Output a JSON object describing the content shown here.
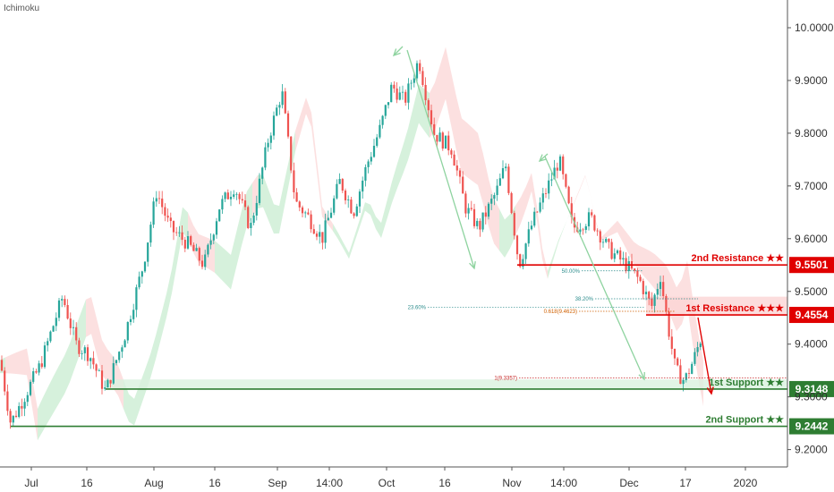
{
  "indicator": "Ichimoku",
  "colors": {
    "up_candle": "#26a69a",
    "down_candle": "#ef5350",
    "resistance": "#e00000",
    "support": "#2e7d32",
    "cloud_bull": "#c8ecd0",
    "cloud_bear": "#fbd5d5",
    "arrow_green": "#8ed39f",
    "arrow_red": "#e00000",
    "fib_teal": "#2c8c8c",
    "fib_orange": "#d06000",
    "fib_red": "#c62828"
  },
  "chart_data": {
    "type": "candlestick",
    "x_tick_labels": [
      "Jul",
      "16",
      "Aug",
      "16",
      "Sep",
      "14:00",
      "Oct",
      "16",
      "Nov",
      "14:00",
      "Dec",
      "17",
      "2020"
    ],
    "y_tick_labels": [
      "10.0000",
      "9.9000",
      "9.8000",
      "9.7000",
      "9.6000",
      "9.5000",
      "9.4000",
      "9.3000",
      "9.2000"
    ],
    "ylim": [
      9.17,
      10.04
    ],
    "price_path": [
      [
        0,
        9.37
      ],
      [
        12,
        9.25
      ],
      [
        30,
        9.31
      ],
      [
        45,
        9.36
      ],
      [
        70,
        9.49
      ],
      [
        85,
        9.4
      ],
      [
        100,
        9.38
      ],
      [
        118,
        9.31
      ],
      [
        140,
        9.42
      ],
      [
        160,
        9.55
      ],
      [
        175,
        9.69
      ],
      [
        190,
        9.62
      ],
      [
        210,
        9.59
      ],
      [
        228,
        9.55
      ],
      [
        245,
        9.66
      ],
      [
        262,
        9.7
      ],
      [
        280,
        9.62
      ],
      [
        300,
        9.79
      ],
      [
        315,
        9.88
      ],
      [
        330,
        9.67
      ],
      [
        345,
        9.64
      ],
      [
        360,
        9.6
      ],
      [
        380,
        9.71
      ],
      [
        395,
        9.65
      ],
      [
        410,
        9.74
      ],
      [
        425,
        9.81
      ],
      [
        438,
        9.89
      ],
      [
        452,
        9.86
      ],
      [
        468,
        9.94
      ],
      [
        485,
        9.8
      ],
      [
        505,
        9.77
      ],
      [
        520,
        9.66
      ],
      [
        535,
        9.62
      ],
      [
        555,
        9.69
      ],
      [
        565,
        9.74
      ],
      [
        580,
        9.55
      ],
      [
        595,
        9.63
      ],
      [
        610,
        9.69
      ],
      [
        625,
        9.75
      ],
      [
        640,
        9.62
      ],
      [
        660,
        9.64
      ],
      [
        680,
        9.58
      ],
      [
        700,
        9.55
      ],
      [
        715,
        9.52
      ],
      [
        728,
        9.47
      ],
      [
        738,
        9.53
      ],
      [
        746,
        9.44
      ],
      [
        755,
        9.35
      ],
      [
        765,
        9.33
      ],
      [
        775,
        9.37
      ],
      [
        785,
        9.42
      ]
    ],
    "levels": [
      {
        "name": "2nd Resistance",
        "stars": "★★",
        "value": 9.5501,
        "label": "9.5501",
        "kind": "resistance"
      },
      {
        "name": "1st Resistance",
        "stars": "★★★",
        "value": 9.4554,
        "label": "9.4554",
        "kind": "resistance"
      },
      {
        "name": "1st Support",
        "stars": "★★",
        "value": 9.3148,
        "label": "9.3148",
        "kind": "support"
      },
      {
        "name": "2nd Support",
        "stars": "★★",
        "value": 9.2442,
        "label": "9.2442",
        "kind": "support"
      }
    ],
    "fib_annotations": [
      {
        "label": "50.00%",
        "value": 9.539
      },
      {
        "label": "38.20%",
        "value": 9.486
      },
      {
        "label": "23.60%",
        "value": 9.47
      },
      {
        "label": "0.618(9.4623)",
        "value": 9.4623
      },
      {
        "label": "1(9.3357)",
        "value": 9.3357
      }
    ],
    "grid": false,
    "axis_position": "right"
  }
}
